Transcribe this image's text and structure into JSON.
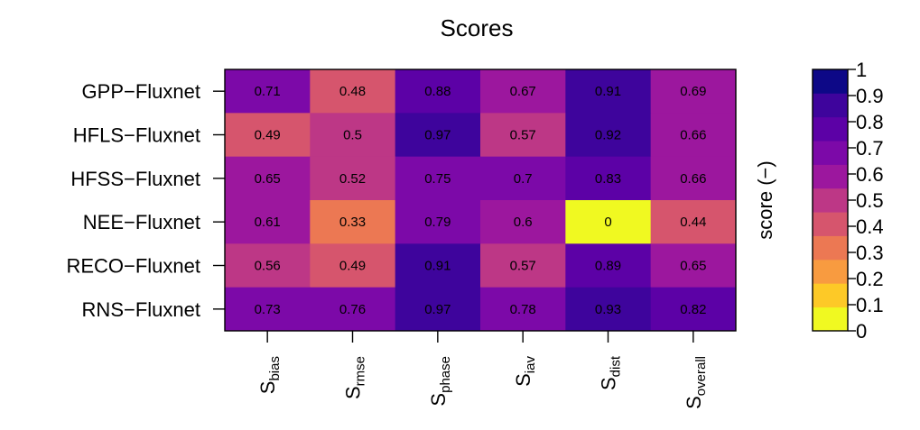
{
  "chart_data": {
    "type": "heatmap",
    "title": "Scores",
    "rows": [
      "GPP−Fluxnet",
      "HFLS−Fluxnet",
      "HFSS−Fluxnet",
      "NEE−Fluxnet",
      "RECO−Fluxnet",
      "RNS−Fluxnet"
    ],
    "columns": [
      {
        "base": "S",
        "sub": "bias"
      },
      {
        "base": "S",
        "sub": "rmse"
      },
      {
        "base": "S",
        "sub": "phase"
      },
      {
        "base": "S",
        "sub": "iav"
      },
      {
        "base": "S",
        "sub": "dist"
      },
      {
        "base": "S",
        "sub": "overall"
      }
    ],
    "cell_labels": [
      [
        "0.71",
        "0.48",
        "0.88",
        "0.67",
        "0.91",
        "0.69"
      ],
      [
        "0.49",
        "0.5",
        "0.97",
        "0.57",
        "0.92",
        "0.66"
      ],
      [
        "0.65",
        "0.52",
        "0.75",
        "0.7",
        "0.83",
        "0.66"
      ],
      [
        "0.61",
        "0.33",
        "0.79",
        "0.6",
        "0",
        "0.44"
      ],
      [
        "0.56",
        "0.49",
        "0.91",
        "0.57",
        "0.89",
        "0.65"
      ],
      [
        "0.73",
        "0.76",
        "0.97",
        "0.78",
        "0.93",
        "0.82"
      ]
    ],
    "colorbar": {
      "label": "score (−)",
      "range": [
        0,
        1
      ],
      "ticks": [
        "0",
        "0.1",
        "0.2",
        "0.3",
        "0.4",
        "0.5",
        "0.6",
        "0.7",
        "0.8",
        "0.9",
        "1"
      ],
      "colors": [
        "#F0F921",
        "#FDC927",
        "#F89B40",
        "#EC7853",
        "#D6556D",
        "#BD3786",
        "#9C179E",
        "#7C09A8",
        "#5C01A6",
        "#3E049C",
        "#0D0887"
      ]
    }
  }
}
